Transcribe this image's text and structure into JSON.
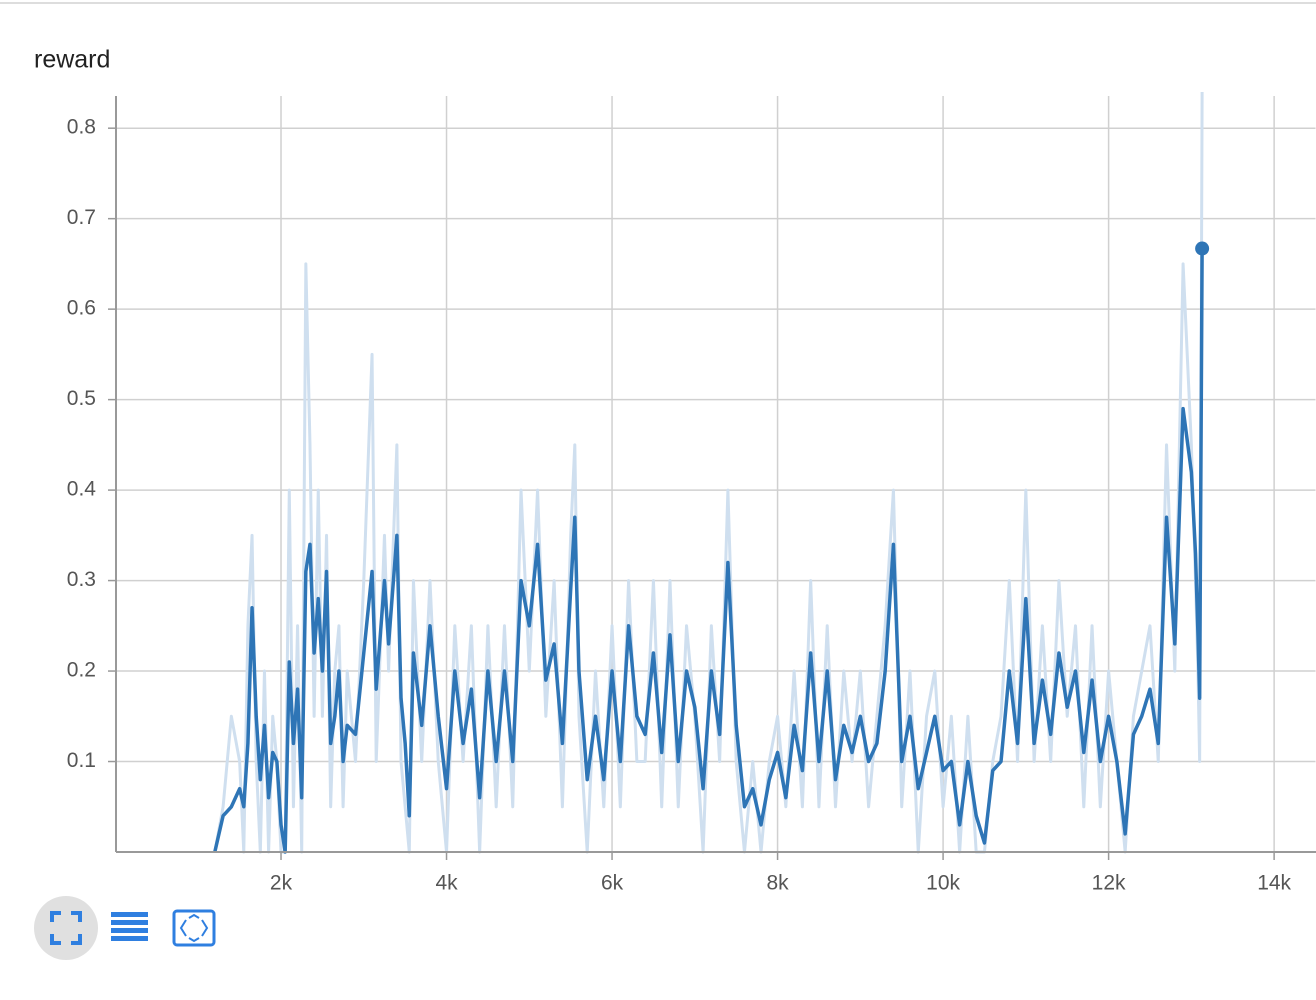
{
  "chart_data": {
    "type": "line",
    "title": "reward",
    "x": [
      1200,
      1300,
      1400,
      1500,
      1550,
      1600,
      1650,
      1700,
      1750,
      1800,
      1850,
      1900,
      1950,
      2000,
      2050,
      2100,
      2150,
      2200,
      2250,
      2300,
      2350,
      2400,
      2450,
      2500,
      2550,
      2600,
      2650,
      2700,
      2750,
      2800,
      2900,
      3000,
      3100,
      3150,
      3250,
      3300,
      3400,
      3450,
      3500,
      3550,
      3600,
      3700,
      3800,
      3900,
      4000,
      4100,
      4200,
      4300,
      4400,
      4500,
      4600,
      4700,
      4800,
      4900,
      5000,
      5100,
      5200,
      5300,
      5400,
      5500,
      5550,
      5600,
      5700,
      5800,
      5900,
      6000,
      6100,
      6200,
      6300,
      6400,
      6500,
      6600,
      6700,
      6800,
      6900,
      7000,
      7100,
      7200,
      7300,
      7400,
      7500,
      7600,
      7700,
      7800,
      7900,
      8000,
      8100,
      8200,
      8300,
      8400,
      8500,
      8600,
      8700,
      8800,
      8900,
      9000,
      9100,
      9200,
      9300,
      9400,
      9500,
      9600,
      9700,
      9800,
      9900,
      10000,
      10100,
      10200,
      10300,
      10400,
      10500,
      10600,
      10700,
      10800,
      10900,
      11000,
      11100,
      11200,
      11300,
      11400,
      11500,
      11600,
      11700,
      11800,
      11900,
      12000,
      12100,
      12200,
      12300,
      12400,
      12500,
      12600,
      12700,
      12800,
      12900,
      13000,
      13050,
      13080,
      13100,
      13130
    ],
    "series": [
      {
        "color": "#2e75b6",
        "values": [
          0,
          0.04,
          0.05,
          0.07,
          0.05,
          0.12,
          0.27,
          0.15,
          0.08,
          0.14,
          0.06,
          0.11,
          0.1,
          0.03,
          0.0,
          0.21,
          0.12,
          0.18,
          0.06,
          0.31,
          0.34,
          0.22,
          0.28,
          0.2,
          0.31,
          0.12,
          0.15,
          0.2,
          0.1,
          0.14,
          0.13,
          0.22,
          0.31,
          0.18,
          0.3,
          0.23,
          0.35,
          0.17,
          0.12,
          0.04,
          0.22,
          0.14,
          0.25,
          0.15,
          0.07,
          0.2,
          0.12,
          0.18,
          0.06,
          0.2,
          0.1,
          0.2,
          0.1,
          0.3,
          0.25,
          0.34,
          0.19,
          0.23,
          0.12,
          0.29,
          0.37,
          0.2,
          0.08,
          0.15,
          0.08,
          0.2,
          0.1,
          0.25,
          0.15,
          0.13,
          0.22,
          0.11,
          0.24,
          0.1,
          0.2,
          0.16,
          0.07,
          0.2,
          0.13,
          0.32,
          0.14,
          0.05,
          0.07,
          0.03,
          0.08,
          0.11,
          0.06,
          0.14,
          0.09,
          0.22,
          0.1,
          0.2,
          0.08,
          0.14,
          0.11,
          0.15,
          0.1,
          0.12,
          0.2,
          0.34,
          0.1,
          0.15,
          0.07,
          0.11,
          0.15,
          0.09,
          0.1,
          0.03,
          0.1,
          0.04,
          0.01,
          0.09,
          0.1,
          0.2,
          0.12,
          0.28,
          0.12,
          0.19,
          0.13,
          0.22,
          0.16,
          0.2,
          0.11,
          0.19,
          0.1,
          0.15,
          0.1,
          0.02,
          0.13,
          0.15,
          0.18,
          0.12,
          0.37,
          0.23,
          0.49,
          0.42,
          0.33,
          0.24,
          0.17,
          0.667
        ]
      },
      {
        "color": "#cfdfef",
        "values": [
          0,
          0.05,
          0.15,
          0.1,
          0,
          0.25,
          0.35,
          0.1,
          0,
          0.2,
          0,
          0.15,
          0.1,
          0,
          0,
          0.4,
          0.05,
          0.25,
          0,
          0.65,
          0.45,
          0.15,
          0.4,
          0.15,
          0.35,
          0.05,
          0.2,
          0.25,
          0.05,
          0.2,
          0.1,
          0.3,
          0.55,
          0.1,
          0.35,
          0.2,
          0.45,
          0.1,
          0.05,
          0,
          0.3,
          0.1,
          0.3,
          0.1,
          0,
          0.25,
          0.1,
          0.25,
          0,
          0.25,
          0.05,
          0.25,
          0.05,
          0.4,
          0.2,
          0.4,
          0.15,
          0.3,
          0.05,
          0.35,
          0.45,
          0.15,
          0,
          0.2,
          0.05,
          0.25,
          0.05,
          0.3,
          0.1,
          0.1,
          0.3,
          0.05,
          0.3,
          0.05,
          0.25,
          0.15,
          0,
          0.25,
          0.1,
          0.4,
          0.1,
          0,
          0.1,
          0,
          0.1,
          0.15,
          0.05,
          0.2,
          0.05,
          0.3,
          0.05,
          0.25,
          0.05,
          0.2,
          0.1,
          0.2,
          0.05,
          0.15,
          0.25,
          0.4,
          0.05,
          0.2,
          0,
          0.15,
          0.2,
          0.05,
          0.15,
          0,
          0.15,
          0,
          0,
          0.1,
          0.15,
          0.3,
          0.1,
          0.4,
          0.1,
          0.25,
          0.1,
          0.3,
          0.15,
          0.25,
          0.05,
          0.25,
          0.05,
          0.2,
          0.1,
          0,
          0.15,
          0.2,
          0.25,
          0.1,
          0.45,
          0.2,
          0.65,
          0.45,
          0.3,
          0.2,
          0.1,
          0.84
        ]
      }
    ],
    "xlim": [
      0,
      14500
    ],
    "ylim": [
      0,
      0.84
    ],
    "xticks": [
      {
        "value": 2000,
        "label": "2k"
      },
      {
        "value": 4000,
        "label": "4k"
      },
      {
        "value": 6000,
        "label": "6k"
      },
      {
        "value": 8000,
        "label": "8k"
      },
      {
        "value": 10000,
        "label": "10k"
      },
      {
        "value": 12000,
        "label": "12k"
      },
      {
        "value": 14000,
        "label": "14k"
      }
    ],
    "yticks": [
      0.1,
      0.2,
      0.3,
      0.4,
      0.5,
      0.6,
      0.7,
      0.8
    ],
    "grid": true
  }
}
